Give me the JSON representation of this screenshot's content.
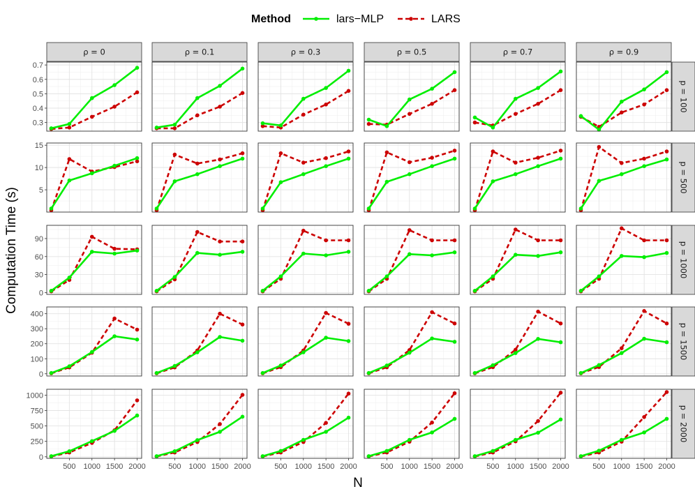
{
  "chart_data": {
    "type": "line",
    "title": "",
    "xlabel": "N",
    "ylabel": "Computation Time (s)",
    "legend": {
      "title": "Method",
      "position": "top",
      "entries": [
        {
          "name": "lars−MLP",
          "color": "#00ee00",
          "dash": "solid"
        },
        {
          "name": "LARS",
          "color": "#cc0000",
          "dash": "dashed"
        }
      ]
    },
    "x": [
      100,
      500,
      1000,
      1500,
      2000
    ],
    "x_ticks": [
      500,
      1000,
      1500,
      2000
    ],
    "x_tick_labels": [
      "500",
      "1000",
      "1500",
      "2000"
    ],
    "xlim": [
      0,
      2100
    ],
    "columns": [
      "ρ = 0",
      "ρ = 0.1",
      "ρ = 0.3",
      "ρ = 0.5",
      "ρ = 0.7",
      "ρ = 0.9"
    ],
    "rows": [
      {
        "label": "p = 100",
        "ylim": [
          0.24,
          0.72
        ],
        "y_ticks": [
          0.3,
          0.4,
          0.5,
          0.6,
          0.7
        ],
        "y_tick_labels": [
          "0.3",
          "0.4",
          "0.5",
          "0.6",
          "0.7"
        ],
        "panels": [
          {
            "lars_mlp": [
              0.26,
              0.29,
              0.47,
              0.56,
              0.68
            ],
            "lars": [
              0.255,
              0.265,
              0.34,
              0.41,
              0.51
            ]
          },
          {
            "lars_mlp": [
              0.265,
              0.285,
              0.47,
              0.555,
              0.675
            ],
            "lars": [
              0.26,
              0.26,
              0.35,
              0.41,
              0.505
            ]
          },
          {
            "lars_mlp": [
              0.295,
              0.28,
              0.465,
              0.54,
              0.66
            ],
            "lars": [
              0.275,
              0.265,
              0.355,
              0.425,
              0.52
            ]
          },
          {
            "lars_mlp": [
              0.32,
              0.275,
              0.46,
              0.535,
              0.65
            ],
            "lars": [
              0.29,
              0.285,
              0.36,
              0.43,
              0.525
            ]
          },
          {
            "lars_mlp": [
              0.335,
              0.265,
              0.465,
              0.54,
              0.655
            ],
            "lars": [
              0.3,
              0.28,
              0.36,
              0.43,
              0.525
            ]
          },
          {
            "lars_mlp": [
              0.345,
              0.25,
              0.445,
              0.53,
              0.65
            ],
            "lars": [
              0.34,
              0.27,
              0.37,
              0.425,
              0.525
            ]
          }
        ]
      },
      {
        "label": "p = 500",
        "ylim": [
          0,
          15.5
        ],
        "y_ticks": [
          5,
          10,
          15
        ],
        "y_tick_labels": [
          "5",
          "10",
          "15"
        ],
        "panels": [
          {
            "lars_mlp": [
              0.8,
              7.1,
              8.7,
              10.4,
              12.1
            ],
            "lars": [
              0.4,
              11.9,
              9.1,
              10.1,
              11.4
            ]
          },
          {
            "lars_mlp": [
              0.8,
              6.9,
              8.5,
              10.3,
              12.0
            ],
            "lars": [
              0.4,
              12.9,
              10.9,
              11.8,
              13.2
            ]
          },
          {
            "lars_mlp": [
              0.8,
              6.7,
              8.5,
              10.3,
              12.0
            ],
            "lars": [
              0.4,
              13.2,
              11.1,
              12.1,
              13.6
            ]
          },
          {
            "lars_mlp": [
              0.8,
              6.8,
              8.5,
              10.3,
              12.0
            ],
            "lars": [
              0.4,
              13.4,
              11.2,
              12.2,
              13.8
            ]
          },
          {
            "lars_mlp": [
              0.8,
              6.9,
              8.5,
              10.3,
              12.0
            ],
            "lars": [
              0.4,
              13.6,
              11.1,
              12.2,
              13.8
            ]
          },
          {
            "lars_mlp": [
              0.8,
              7.0,
              8.5,
              10.3,
              11.8
            ],
            "lars": [
              0.4,
              14.6,
              11.0,
              12.0,
              13.6
            ]
          }
        ]
      },
      {
        "label": "p = 1000",
        "ylim": [
          -3,
          112
        ],
        "y_ticks": [
          0,
          30,
          60,
          90
        ],
        "y_tick_labels": [
          "0",
          "30",
          "60",
          "90"
        ],
        "panels": [
          {
            "lars_mlp": [
              3,
              25,
              68,
              65,
              70
            ],
            "lars": [
              2,
              21,
              93,
              73,
              72
            ]
          },
          {
            "lars_mlp": [
              3,
              26,
              66,
              63,
              68
            ],
            "lars": [
              2,
              22,
              101,
              85,
              85
            ]
          },
          {
            "lars_mlp": [
              3,
              27,
              65,
              62,
              68
            ],
            "lars": [
              2,
              23,
              103,
              87,
              87
            ]
          },
          {
            "lars_mlp": [
              3,
              27,
              64,
              62,
              67
            ],
            "lars": [
              2,
              23,
              104,
              87,
              87
            ]
          },
          {
            "lars_mlp": [
              3,
              27,
              63,
              61,
              67
            ],
            "lars": [
              2,
              23,
              105,
              87,
              87
            ]
          },
          {
            "lars_mlp": [
              3,
              27,
              61,
              59,
              66
            ],
            "lars": [
              2,
              23,
              107,
              87,
              87
            ]
          }
        ]
      },
      {
        "label": "p = 1500",
        "ylim": [
          -15,
          445
        ],
        "y_ticks": [
          0,
          100,
          200,
          300,
          400
        ],
        "y_tick_labels": [
          "0",
          "100",
          "200",
          "300",
          "400"
        ],
        "panels": [
          {
            "lars_mlp": [
              5,
              50,
              145,
              250,
              228
            ],
            "lars": [
              3,
              42,
              140,
              368,
              294
            ]
          },
          {
            "lars_mlp": [
              5,
              52,
              143,
              245,
              220
            ],
            "lars": [
              3,
              42,
              155,
              400,
              328
            ]
          },
          {
            "lars_mlp": [
              5,
              55,
              143,
              240,
              218
            ],
            "lars": [
              3,
              44,
              155,
              405,
              333
            ]
          },
          {
            "lars_mlp": [
              5,
              55,
              140,
              235,
              213
            ],
            "lars": [
              3,
              43,
              158,
              410,
              335
            ]
          },
          {
            "lars_mlp": [
              5,
              57,
              138,
              232,
              210
            ],
            "lars": [
              3,
              44,
              160,
              414,
              335
            ]
          },
          {
            "lars_mlp": [
              5,
              58,
              138,
              233,
              210
            ],
            "lars": [
              3,
              45,
              170,
              418,
              335
            ]
          }
        ]
      },
      {
        "label": "p = 2000",
        "ylim": [
          -25,
          1095
        ],
        "y_ticks": [
          0,
          250,
          500,
          750,
          1000
        ],
        "y_tick_labels": [
          "0",
          "250",
          "500",
          "750",
          "1000"
        ],
        "panels": [
          {
            "lars_mlp": [
              10,
              90,
              255,
              420,
              670
            ],
            "lars": [
              5,
              70,
              225,
              430,
              915
            ]
          },
          {
            "lars_mlp": [
              10,
              90,
              270,
              405,
              650
            ],
            "lars": [
              5,
              70,
              240,
              530,
              1005
            ]
          },
          {
            "lars_mlp": [
              10,
              95,
              275,
              405,
              635
            ],
            "lars": [
              5,
              70,
              240,
              550,
              1025
            ]
          },
          {
            "lars_mlp": [
              10,
              95,
              275,
              395,
              615
            ],
            "lars": [
              5,
              70,
              245,
              555,
              1030
            ]
          },
          {
            "lars_mlp": [
              10,
              95,
              275,
              390,
              605
            ],
            "lars": [
              5,
              70,
              250,
              580,
              1040
            ]
          },
          {
            "lars_mlp": [
              10,
              100,
              275,
              395,
              615
            ],
            "lars": [
              5,
              70,
              245,
              645,
              1050
            ]
          }
        ]
      }
    ]
  }
}
